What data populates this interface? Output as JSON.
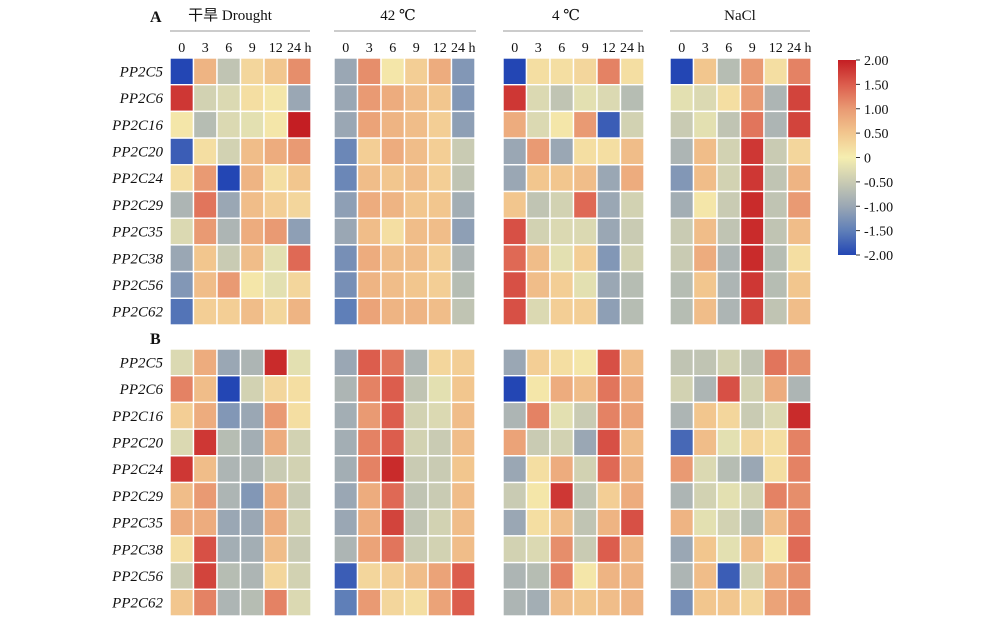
{
  "chart_data": {
    "type": "heatmap",
    "panels": [
      "A",
      "B"
    ],
    "conditions": [
      "干旱 Drought",
      "42 ℃",
      "4 ℃",
      "NaCl"
    ],
    "timepoints": [
      "0",
      "3",
      "6",
      "9",
      "12",
      "24 h"
    ],
    "genes": [
      "PP2C5",
      "PP2C6",
      "PP2C16",
      "PP2C20",
      "PP2C24",
      "PP2C29",
      "PP2C35",
      "PP2C38",
      "PP2C56",
      "PP2C62"
    ],
    "colorbar": {
      "min": -2.0,
      "max": 2.0,
      "ticks": [
        "2.00",
        "1.50",
        "1.00",
        "0.50",
        "0",
        "-0.50",
        "-1.00",
        "-1.50",
        "-2.00"
      ],
      "colors": [
        "#2346b4",
        "#5f7fb8",
        "#9aa7b4",
        "#c9cbb3",
        "#f5eeb0",
        "#f2c68e",
        "#e99a73",
        "#dc5d4d",
        "#c41e23"
      ]
    },
    "values": {
      "A": [
        [
          [
            -2.0,
            0.7,
            -0.6,
            0.3,
            0.5,
            1.1
          ],
          [
            1.8,
            -0.4,
            -0.3,
            0.2,
            0.1,
            -1.0
          ],
          [
            0.1,
            -0.7,
            -0.3,
            -0.2,
            0.1,
            2.0
          ],
          [
            -1.8,
            0.2,
            -0.4,
            0.6,
            0.8,
            1.0
          ],
          [
            0.2,
            1.0,
            -2.0,
            0.7,
            0.2,
            0.5
          ],
          [
            -0.8,
            1.3,
            -1.0,
            0.6,
            0.4,
            0.3
          ],
          [
            -0.3,
            1.0,
            -0.8,
            0.8,
            1.0,
            -1.1
          ],
          [
            -1.0,
            0.5,
            -0.5,
            0.6,
            -0.2,
            1.4
          ],
          [
            -1.2,
            0.6,
            1.0,
            0.1,
            -0.2,
            0.3
          ],
          [
            -1.6,
            0.4,
            0.4,
            0.6,
            0.3,
            0.7
          ]
        ],
        [
          [
            -1.0,
            1.1,
            0.1,
            0.4,
            0.8,
            -1.2
          ],
          [
            -1.0,
            1.0,
            0.8,
            0.6,
            0.5,
            -1.2
          ],
          [
            -1.0,
            0.9,
            0.7,
            0.6,
            0.4,
            -1.1
          ],
          [
            -1.4,
            0.4,
            0.8,
            0.6,
            0.4,
            -0.5
          ],
          [
            -1.4,
            0.6,
            0.5,
            0.6,
            0.4,
            -0.6
          ],
          [
            -1.1,
            0.8,
            0.7,
            0.5,
            0.5,
            -0.9
          ],
          [
            -1.0,
            0.6,
            0.2,
            0.6,
            0.6,
            -1.1
          ],
          [
            -1.3,
            0.8,
            0.6,
            0.6,
            0.4,
            -0.8
          ],
          [
            -1.3,
            0.7,
            0.6,
            0.5,
            0.4,
            -0.7
          ],
          [
            -1.5,
            0.9,
            0.7,
            0.7,
            0.6,
            -0.6
          ]
        ],
        [
          [
            -2.0,
            0.2,
            0.2,
            0.3,
            1.2,
            0.2
          ],
          [
            1.8,
            -0.3,
            -0.6,
            -0.2,
            -0.3,
            -0.7
          ],
          [
            0.8,
            -0.3,
            0.1,
            1.0,
            -1.8,
            -0.4
          ],
          [
            -1.0,
            1.0,
            -1.0,
            0.2,
            0.2,
            0.6
          ],
          [
            -1.0,
            0.5,
            0.5,
            0.6,
            -1.0,
            0.8
          ],
          [
            0.5,
            -0.6,
            -0.4,
            1.4,
            -1.0,
            -0.4
          ],
          [
            1.6,
            -0.4,
            -0.3,
            -0.3,
            -1.0,
            -0.5
          ],
          [
            1.4,
            0.6,
            -0.2,
            0.4,
            -1.2,
            -0.4
          ],
          [
            1.6,
            0.6,
            0.4,
            -0.2,
            -1.0,
            -0.7
          ],
          [
            1.6,
            -0.3,
            0.4,
            0.4,
            -1.1,
            -0.7
          ]
        ],
        [
          [
            -2.0,
            0.5,
            -0.7,
            1.0,
            0.2,
            1.2
          ],
          [
            -0.2,
            -0.3,
            0.2,
            1.0,
            -0.8,
            1.7
          ],
          [
            -0.5,
            -0.2,
            -0.6,
            1.3,
            -0.8,
            1.7
          ],
          [
            -0.8,
            0.6,
            -0.4,
            1.8,
            -0.5,
            0.3
          ],
          [
            -1.2,
            0.6,
            -0.4,
            1.8,
            -0.6,
            0.7
          ],
          [
            -0.9,
            0.1,
            -0.5,
            1.9,
            -0.6,
            1.0
          ],
          [
            -0.5,
            0.6,
            -0.6,
            1.9,
            -0.6,
            0.6
          ],
          [
            -0.5,
            0.8,
            -0.8,
            1.9,
            -0.7,
            0.2
          ],
          [
            -0.7,
            0.5,
            -0.8,
            1.8,
            -0.7,
            0.5
          ],
          [
            -0.7,
            0.6,
            -0.8,
            1.7,
            -0.6,
            0.6
          ]
        ]
      ],
      "B": [
        [
          [
            -0.3,
            0.8,
            -1.0,
            -0.8,
            1.9,
            -0.2
          ],
          [
            1.2,
            0.6,
            -2.0,
            -0.4,
            0.3,
            0.2
          ],
          [
            0.4,
            0.8,
            -1.2,
            -1.0,
            1.0,
            0.2
          ],
          [
            -0.3,
            1.8,
            -0.7,
            -0.9,
            0.8,
            -0.4
          ],
          [
            1.8,
            0.6,
            -0.8,
            -0.8,
            -0.5,
            -0.4
          ],
          [
            0.6,
            1.0,
            -0.8,
            -1.2,
            0.8,
            -0.5
          ],
          [
            0.8,
            0.8,
            -1.0,
            -1.0,
            0.8,
            -0.4
          ],
          [
            0.2,
            1.6,
            -0.9,
            -0.9,
            0.6,
            -0.5
          ],
          [
            -0.5,
            1.7,
            -0.7,
            -0.8,
            0.3,
            -0.4
          ],
          [
            0.5,
            1.2,
            -0.8,
            -0.7,
            1.2,
            -0.3
          ]
        ],
        [
          [
            -1.0,
            1.5,
            1.3,
            -0.8,
            0.3,
            0.4
          ],
          [
            -0.8,
            1.2,
            1.5,
            -0.6,
            -0.2,
            0.5
          ],
          [
            -0.9,
            1.0,
            1.5,
            -0.4,
            -0.3,
            0.6
          ],
          [
            -0.9,
            1.2,
            1.5,
            -0.4,
            -0.5,
            0.6
          ],
          [
            -0.9,
            1.2,
            1.9,
            -0.5,
            -0.5,
            0.5
          ],
          [
            -1.0,
            0.8,
            1.4,
            -0.6,
            -0.5,
            0.6
          ],
          [
            -1.0,
            0.8,
            1.7,
            -0.6,
            -0.4,
            0.6
          ],
          [
            -0.8,
            0.9,
            1.3,
            -0.5,
            -0.4,
            0.6
          ],
          [
            -1.8,
            0.3,
            0.4,
            0.6,
            0.9,
            1.5
          ],
          [
            -1.5,
            1.0,
            0.3,
            0.2,
            0.9,
            1.5
          ]
        ],
        [
          [
            -1.0,
            0.4,
            0.2,
            0.1,
            1.6,
            0.6
          ],
          [
            -2.0,
            0.1,
            0.8,
            0.6,
            1.3,
            0.8
          ],
          [
            -0.8,
            1.2,
            -0.2,
            -0.5,
            1.2,
            0.9
          ],
          [
            0.9,
            -0.5,
            -0.4,
            -1.0,
            1.6,
            0.6
          ],
          [
            -1.0,
            0.2,
            0.8,
            -0.4,
            1.4,
            0.7
          ],
          [
            -0.5,
            0.1,
            1.8,
            -0.6,
            0.4,
            0.8
          ],
          [
            -1.0,
            0.2,
            0.6,
            -0.6,
            0.7,
            1.6
          ],
          [
            -0.4,
            -0.3,
            1.1,
            -0.5,
            1.5,
            0.7
          ],
          [
            -0.8,
            -0.7,
            1.2,
            0.1,
            0.7,
            0.7
          ],
          [
            -0.8,
            -0.9,
            0.6,
            0.5,
            0.6,
            0.7
          ]
        ],
        [
          [
            -0.6,
            -0.6,
            -0.4,
            -0.6,
            1.3,
            1.1
          ],
          [
            -0.4,
            -0.8,
            1.6,
            -0.4,
            0.8,
            -0.8
          ],
          [
            -0.8,
            0.5,
            0.3,
            -0.5,
            -0.3,
            1.9
          ],
          [
            -1.7,
            0.6,
            -0.2,
            0.3,
            0.2,
            1.2
          ],
          [
            1.0,
            -0.3,
            -0.7,
            -1.0,
            0.2,
            1.2
          ],
          [
            -0.8,
            -0.4,
            -0.2,
            -0.4,
            1.2,
            1.1
          ],
          [
            0.7,
            -0.2,
            -0.4,
            -0.7,
            0.6,
            1.2
          ],
          [
            -1.0,
            0.5,
            -0.2,
            0.6,
            0.1,
            1.4
          ],
          [
            -0.8,
            0.6,
            -1.8,
            -0.4,
            0.8,
            1.1
          ],
          [
            -1.3,
            0.5,
            0.5,
            0.3,
            0.9,
            1.1
          ]
        ]
      ]
    }
  }
}
